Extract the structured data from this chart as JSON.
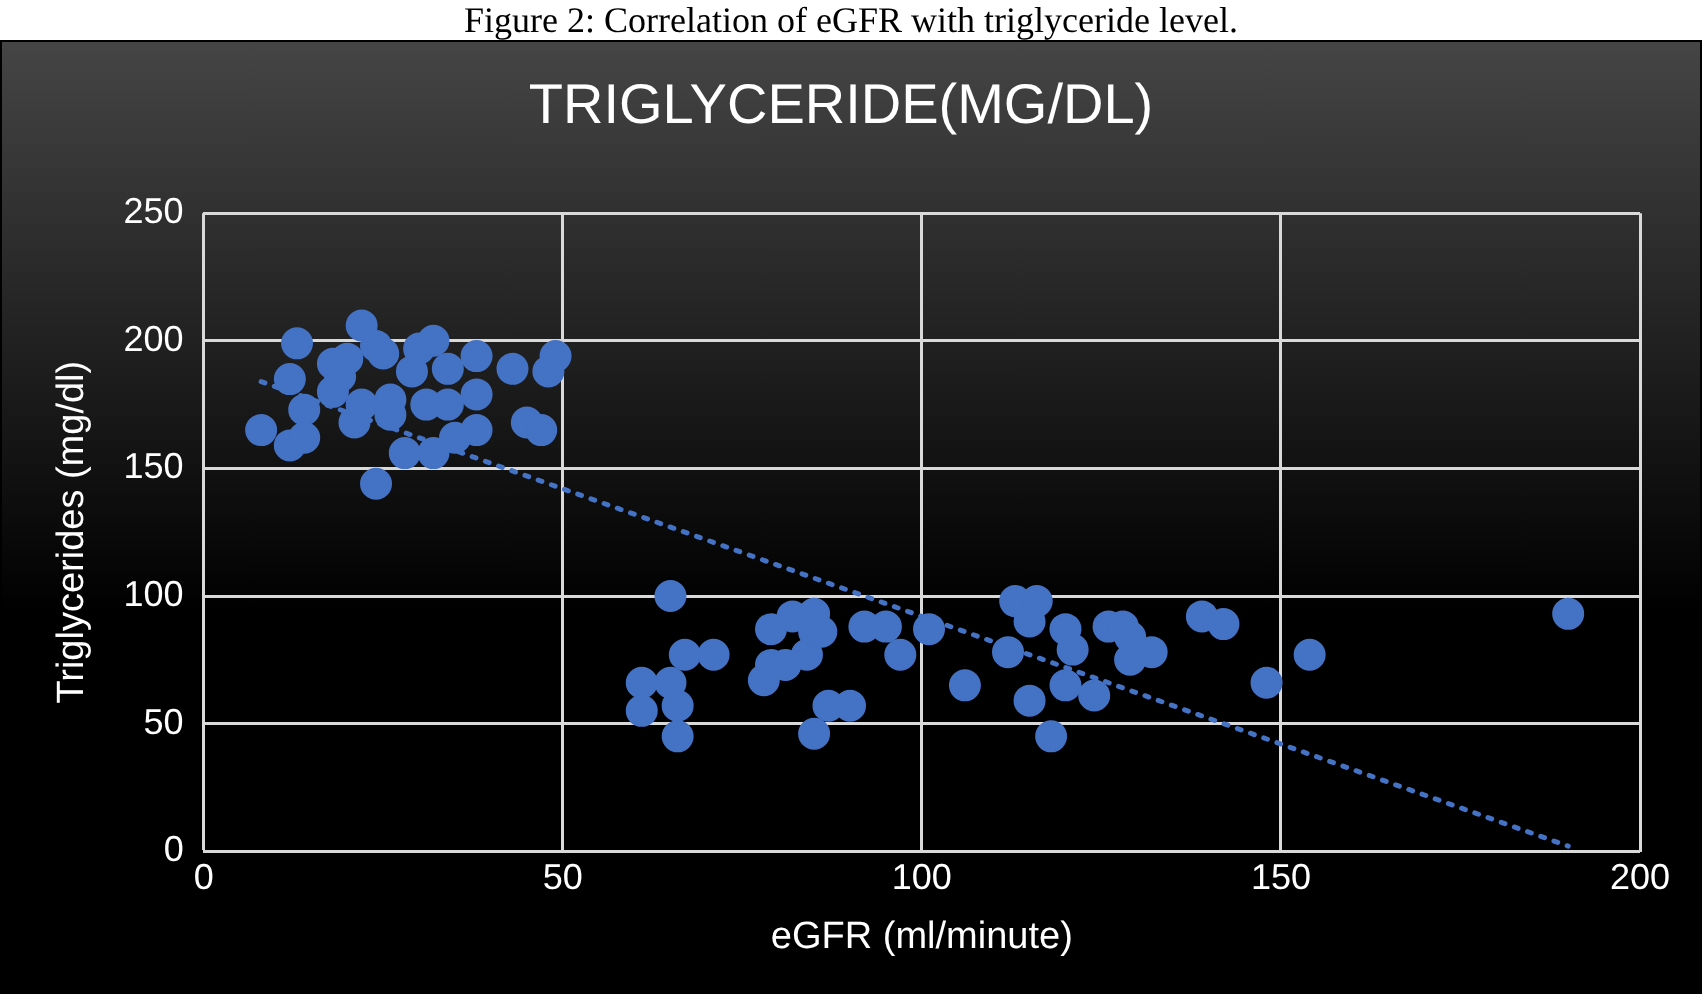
{
  "chart_data": {
    "type": "scatter",
    "title": "TRIGLYCERIDE(MG/DL)",
    "xlabel": "eGFR (ml/minute)",
    "ylabel": "Triglycerides (mg/dl)",
    "annotations": [
      "Figure 2: Correlation of eGFR with triglyceride level."
    ],
    "xlim": [
      0,
      200
    ],
    "xticks": [
      0,
      50,
      100,
      150,
      200
    ],
    "ylim": [
      0,
      250
    ],
    "yticks": [
      0,
      50,
      100,
      150,
      200,
      250
    ],
    "grid": true,
    "marker": "circle",
    "series": [
      {
        "type": "scatter",
        "color": "#4472c4",
        "x": [
          8,
          12,
          13,
          12,
          14,
          14,
          18,
          18,
          19,
          21,
          20,
          22,
          22,
          24,
          24,
          25,
          26,
          26,
          28,
          29,
          30,
          31,
          32,
          32,
          34,
          34,
          35,
          38,
          38,
          38,
          43,
          45,
          47,
          48,
          49,
          65,
          61,
          61,
          65,
          66,
          66,
          67,
          71,
          78,
          79,
          79,
          82,
          81,
          84,
          85,
          85,
          86,
          85,
          87,
          90,
          92,
          95,
          97,
          101,
          106,
          113,
          116,
          115,
          112,
          115,
          118,
          120,
          121,
          120,
          124,
          126,
          128,
          129,
          129,
          132,
          139,
          142,
          148,
          154,
          190
        ],
        "values": [
          165,
          159,
          199,
          185,
          173,
          162,
          191,
          180,
          186,
          168,
          193,
          206,
          175,
          144,
          198,
          195,
          177,
          171,
          156,
          188,
          197,
          175,
          200,
          156,
          175,
          189,
          162,
          194,
          179,
          165,
          189,
          168,
          165,
          188,
          194,
          100,
          66,
          55,
          66,
          57,
          45,
          77,
          77,
          67,
          87,
          73,
          92,
          73,
          77,
          93,
          86,
          86,
          46,
          57,
          57,
          88,
          88,
          77,
          87,
          65,
          98,
          98,
          90,
          78,
          59,
          45,
          87,
          79,
          65,
          61,
          88,
          88,
          84,
          75,
          78,
          92,
          89,
          66,
          77,
          93
        ]
      },
      {
        "type": "line",
        "color": "#4472c4",
        "x": [
          8,
          190
        ],
        "values": [
          184,
          2
        ],
        "line_style": "dotted",
        "marker": "none"
      }
    ]
  }
}
